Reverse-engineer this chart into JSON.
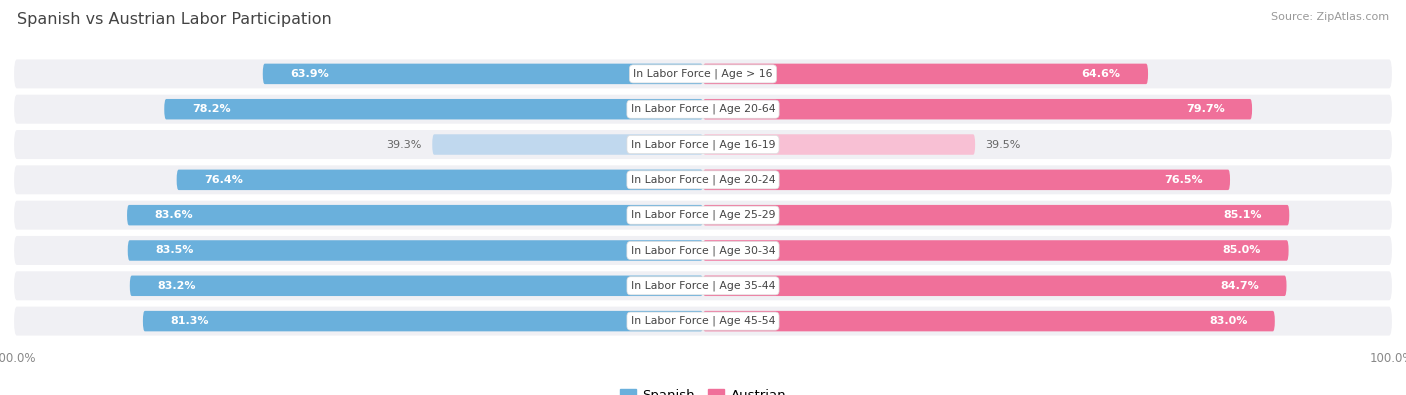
{
  "title": "Spanish vs Austrian Labor Participation",
  "source": "Source: ZipAtlas.com",
  "categories": [
    "In Labor Force | Age > 16",
    "In Labor Force | Age 20-64",
    "In Labor Force | Age 16-19",
    "In Labor Force | Age 20-24",
    "In Labor Force | Age 25-29",
    "In Labor Force | Age 30-34",
    "In Labor Force | Age 35-44",
    "In Labor Force | Age 45-54"
  ],
  "spanish_values": [
    63.9,
    78.2,
    39.3,
    76.4,
    83.6,
    83.5,
    83.2,
    81.3
  ],
  "austrian_values": [
    64.6,
    79.7,
    39.5,
    76.5,
    85.1,
    85.0,
    84.7,
    83.0
  ],
  "spanish_color": "#6ab0dc",
  "austrian_color": "#f0709a",
  "spanish_color_light": "#c0d8ee",
  "austrian_color_light": "#f8c0d4",
  "bar_height": 0.58,
  "row_bg_color": "#f0f0f4",
  "background_color": "#ffffff",
  "text_color_inside": "#ffffff",
  "text_color_outside": "#666666",
  "title_color": "#444444",
  "max_value": 100.0,
  "legend_labels": [
    "Spanish",
    "Austrian"
  ],
  "small_threshold": 50
}
